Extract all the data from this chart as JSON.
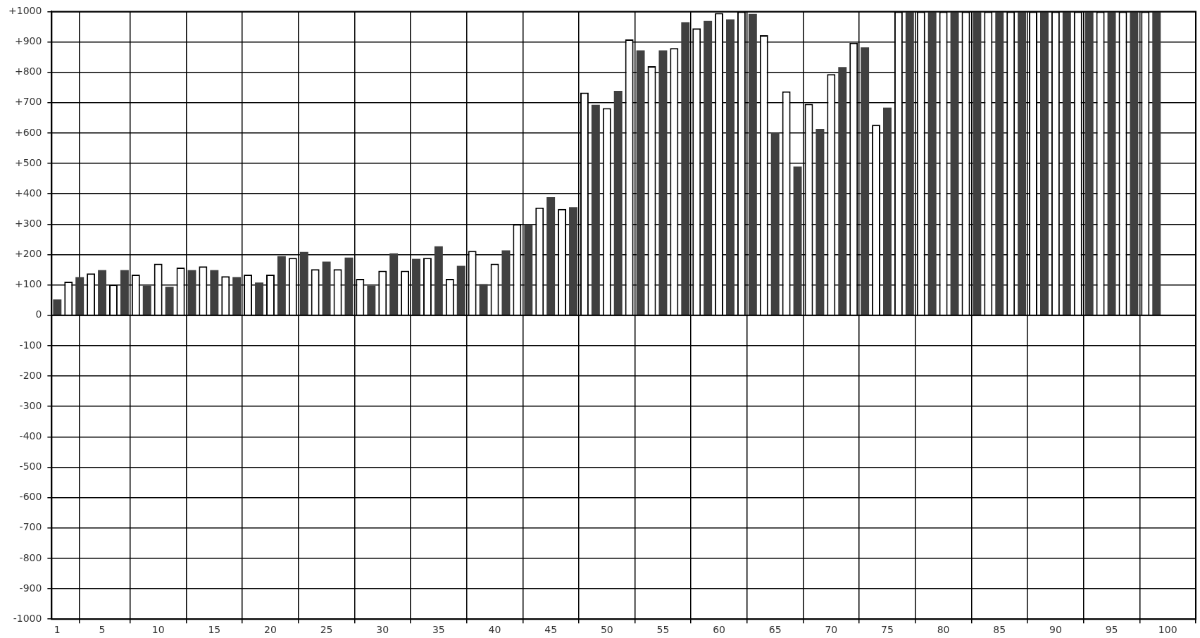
{
  "chart_data": {
    "type": "bar",
    "xlim": [
      0.5,
      102.5
    ],
    "xticks": [
      1,
      5,
      10,
      15,
      20,
      25,
      30,
      35,
      40,
      45,
      50,
      55,
      60,
      65,
      70,
      75,
      80,
      85,
      90,
      95,
      100
    ],
    "ylim": [
      -1000,
      1000
    ],
    "yticks": [
      {
        "value": -1000,
        "label": "-1000"
      },
      {
        "value": -900,
        "label": "-900"
      },
      {
        "value": -800,
        "label": "-800"
      },
      {
        "value": -700,
        "label": "-700"
      },
      {
        "value": -600,
        "label": "-600"
      },
      {
        "value": -500,
        "label": "-500"
      },
      {
        "value": -400,
        "label": "-400"
      },
      {
        "value": -300,
        "label": "-300"
      },
      {
        "value": -200,
        "label": "-200"
      },
      {
        "value": -100,
        "label": "-100"
      },
      {
        "value": 0,
        "label": "0"
      },
      {
        "value": 100,
        "label": "+100"
      },
      {
        "value": 200,
        "label": "+200"
      },
      {
        "value": 300,
        "label": "+300"
      },
      {
        "value": 400,
        "label": "+400"
      },
      {
        "value": 500,
        "label": "+500"
      },
      {
        "value": 600,
        "label": "+600"
      },
      {
        "value": 700,
        "label": "+700"
      },
      {
        "value": 800,
        "label": "+800"
      },
      {
        "value": 900,
        "label": "+900"
      },
      {
        "value": 1000,
        "label": "+1000"
      }
    ],
    "grid": true,
    "series": [
      {
        "color": "#404040",
        "x": [
          1,
          3,
          5,
          7,
          9,
          11,
          13,
          15,
          17,
          19,
          21,
          23,
          25,
          27,
          29,
          31,
          33,
          35,
          37,
          39,
          41,
          43,
          45,
          47,
          49,
          51,
          53,
          55,
          57,
          59,
          61,
          63,
          65,
          67,
          69,
          71,
          73,
          75,
          77,
          79,
          81,
          83,
          85,
          87,
          89,
          91,
          93,
          95,
          97,
          99
        ],
        "values": [
          52,
          126,
          149,
          149,
          98,
          94,
          149,
          149,
          126,
          108,
          195,
          209,
          177,
          190,
          98,
          204,
          186,
          227,
          163,
          103,
          214,
          300,
          389,
          356,
          693,
          739,
          872,
          872,
          965,
          969,
          974,
          992,
          601,
          490,
          614,
          817,
          882,
          684,
          1000,
          1000,
          1000,
          1000,
          1000,
          1000,
          1000,
          1000,
          1000,
          1000,
          1000,
          1000
        ]
      },
      {
        "color": "#ffffff",
        "x": [
          2,
          4,
          6,
          8,
          10,
          12,
          14,
          16,
          18,
          20,
          22,
          24,
          26,
          28,
          30,
          32,
          34,
          36,
          38,
          40,
          42,
          44,
          46,
          48,
          50,
          52,
          54,
          56,
          58,
          60,
          62,
          64,
          66,
          68,
          70,
          72,
          74,
          76,
          78,
          80,
          82,
          84,
          86,
          88,
          90,
          92,
          94,
          96,
          98
        ],
        "values": [
          111,
          138,
          101,
          134,
          170,
          157,
          161,
          129,
          134,
          134,
          189,
          152,
          152,
          120,
          147,
          147,
          189,
          120,
          212,
          170,
          300,
          355,
          350,
          733,
          682,
          908,
          820,
          880,
          945,
          995,
          1000,
          922,
          737,
          696,
          794,
          897,
          627,
          1000,
          1000,
          1000,
          1000,
          1000,
          1000,
          1000,
          1000,
          1000,
          1000,
          1000,
          1000
        ]
      }
    ]
  }
}
